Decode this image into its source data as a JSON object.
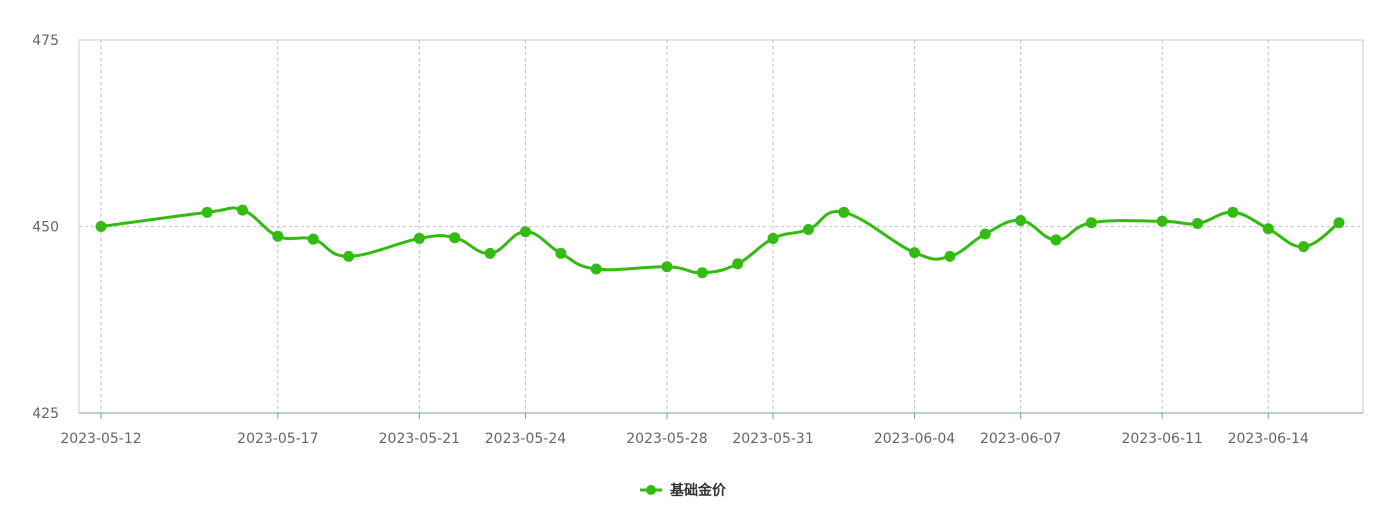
{
  "chart_data": {
    "type": "line",
    "title": "",
    "xlabel": "",
    "ylabel": "",
    "ylim": [
      425,
      475
    ],
    "yticks": [
      "425",
      "450",
      "475"
    ],
    "x": [
      "2023-05-12",
      "2023-05-15",
      "2023-05-16",
      "2023-05-17",
      "2023-05-18",
      "2023-05-19",
      "2023-05-21",
      "2023-05-22",
      "2023-05-23",
      "2023-05-24",
      "2023-05-25",
      "2023-05-26",
      "2023-05-28",
      "2023-05-29",
      "2023-05-30",
      "2023-05-31",
      "2023-06-01",
      "2023-06-02",
      "2023-06-04",
      "2023-06-05",
      "2023-06-06",
      "2023-06-07",
      "2023-06-08",
      "2023-06-09",
      "2023-06-11",
      "2023-06-12",
      "2023-06-13",
      "2023-06-14",
      "2023-06-15",
      "2023-06-16"
    ],
    "xtick_labels": [
      "2023-05-12",
      "2023-05-17",
      "2023-05-21",
      "2023-05-24",
      "2023-05-28",
      "2023-05-31",
      "2023-06-04",
      "2023-06-07",
      "2023-06-11",
      "2023-06-14"
    ],
    "series": [
      {
        "name": "基础金价",
        "values": [
          450.0,
          451.9,
          452.2,
          448.7,
          448.3,
          446.0,
          448.4,
          448.5,
          446.4,
          449.3,
          446.4,
          444.3,
          444.6,
          443.8,
          445.0,
          448.4,
          449.6,
          451.9,
          446.5,
          446.0,
          449.0,
          450.8,
          448.2,
          450.5,
          450.7,
          450.4,
          451.9,
          449.7,
          447.3,
          450.5
        ]
      }
    ],
    "grid": true,
    "legend_position": "bottom-center",
    "color": "#33bb11"
  }
}
